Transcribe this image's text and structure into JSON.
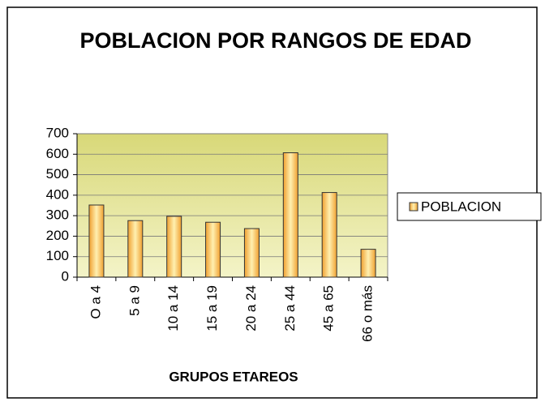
{
  "chart_data": {
    "type": "bar",
    "title": "POBLACION POR RANGOS DE EDAD",
    "xlabel": "GRUPOS ETAREOS",
    "categories": [
      "O a 4",
      "5 a 9",
      "10 a 14",
      "15 a 19",
      "20 a 24",
      "25 a 44",
      "45 a 65",
      "66 o más"
    ],
    "series": [
      {
        "name": "POBLACION",
        "color": "#f5a623",
        "values": [
          352,
          276,
          297,
          268,
          237,
          607,
          413,
          136
        ]
      }
    ],
    "ylim": [
      0,
      700
    ],
    "yticks": [
      0,
      100,
      200,
      300,
      400,
      500,
      600,
      700
    ],
    "grid": true,
    "legend": "right"
  }
}
